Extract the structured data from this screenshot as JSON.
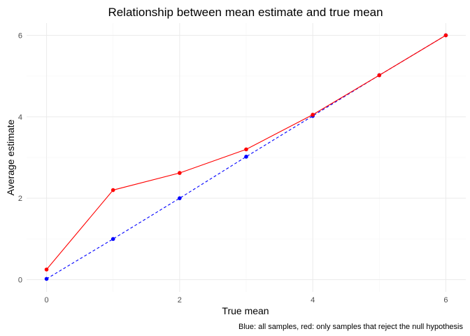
{
  "chart_data": {
    "type": "line",
    "title": "Relationship between mean estimate and true mean",
    "xlabel": "True mean",
    "ylabel": "Average estimate",
    "caption": "Blue: all samples, red: only samples that reject the null hypothesis",
    "x": [
      0,
      1,
      2,
      3,
      4,
      5,
      6
    ],
    "xlim": [
      -0.3,
      6.3
    ],
    "ylim": [
      -0.3,
      6.3
    ],
    "xticks": [
      "0",
      "2",
      "4",
      "6"
    ],
    "yticks": [
      "0",
      "2",
      "4",
      "6"
    ],
    "grid": true,
    "legend": "none",
    "series": [
      {
        "color": "#0000ff",
        "line_style": "dashed",
        "values": [
          0.02,
          1.0,
          2.0,
          3.02,
          4.02,
          5.02,
          6.0
        ]
      },
      {
        "color": "#ff0000",
        "line_style": "solid",
        "values": [
          0.25,
          2.2,
          2.62,
          3.2,
          4.05,
          5.02,
          6.0
        ]
      }
    ]
  }
}
